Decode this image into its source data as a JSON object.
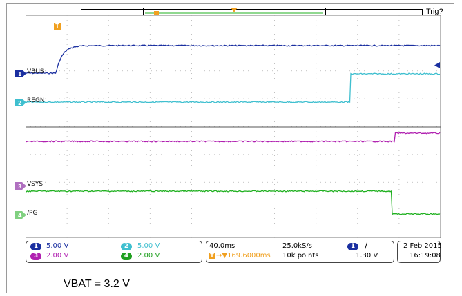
{
  "window": {
    "trigger_status": "Trig?",
    "trigger_marker": "T"
  },
  "channels": [
    {
      "id": "1",
      "name": "VBUS",
      "color": "#1a2fa0",
      "scale": "5.00 V"
    },
    {
      "id": "2",
      "name": "REGN",
      "color": "#3fbfcf",
      "scale": "5.00 V"
    },
    {
      "id": "3",
      "name": "VSYS",
      "color": "#b020b0",
      "scale": "2.00 V"
    },
    {
      "id": "4",
      "name": "/PG",
      "color": "#20b020",
      "scale": "2.00 V"
    }
  ],
  "timebase": {
    "scale": "40.0ms",
    "delay": "→▼169.6000ms",
    "sample_rate": "25.0kS/s",
    "record_length": "10k points"
  },
  "trigger": {
    "source": "1",
    "slope": "∕",
    "level": "1.30 V"
  },
  "datetime": {
    "date": "2 Feb  2015",
    "time": "16:19:08"
  },
  "caption": "VBAT = 3.2 V",
  "icons": {
    "ground_marker": "triangle-right-icon",
    "trigger_level": "triangle-left-icon"
  }
}
